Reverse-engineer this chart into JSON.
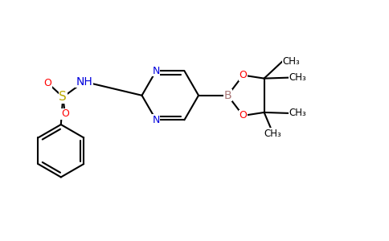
{
  "background_color": "#ffffff",
  "bond_color": "#000000",
  "bond_width": 1.5,
  "atom_colors": {
    "N": "#0000dd",
    "O": "#ff0000",
    "S": "#bbaa00",
    "B": "#aa7777",
    "C": "#000000",
    "H": "#0000dd"
  },
  "font_size": 9,
  "fig_width": 4.84,
  "fig_height": 3.0,
  "dpi": 100,
  "xlim": [
    0,
    9.5
  ],
  "ylim": [
    0,
    5.8
  ]
}
